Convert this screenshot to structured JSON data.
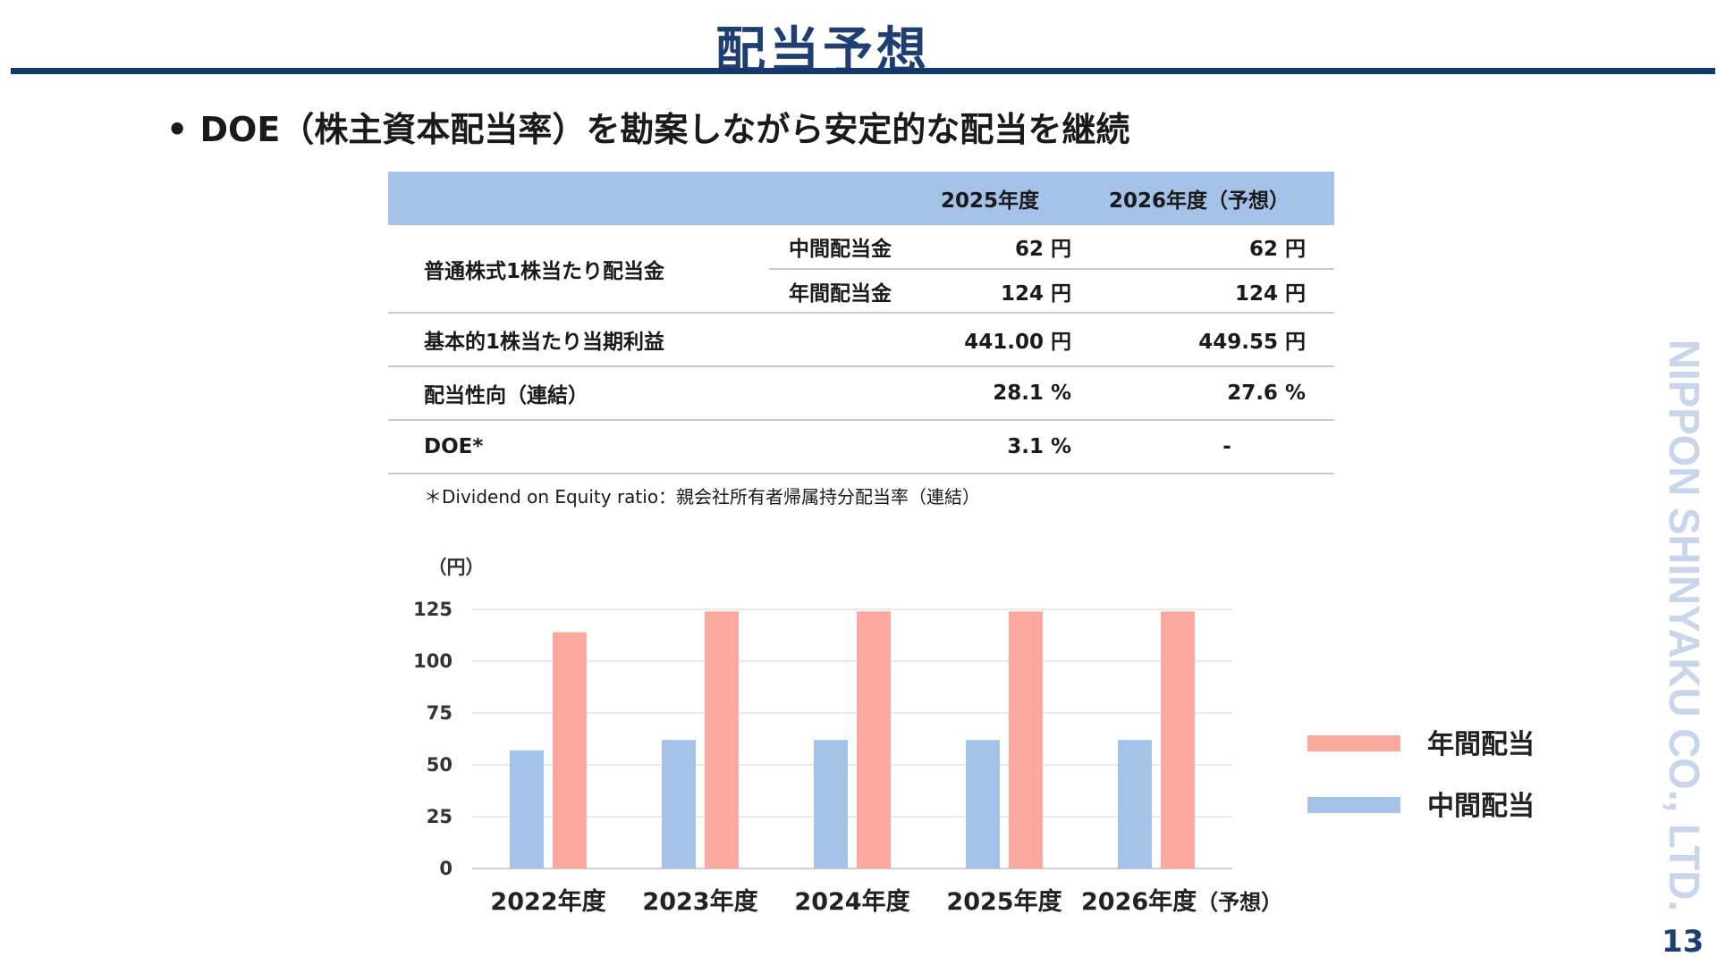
{
  "title": "配当予想",
  "bullet": "• DOE（株主資本配当率）を勘案しながら安定的な配当を継続",
  "table": {
    "headers": [
      "",
      "",
      "2025年度",
      "2026年度（予想）"
    ],
    "rows": [
      {
        "label": "普通株式1株当たり配当金",
        "sub": "中間配当金",
        "v2025": "62 円",
        "v2026": "62 円"
      },
      {
        "sub": "年間配当金",
        "v2025": "124 円",
        "v2026": "124 円"
      },
      {
        "label": "基本的1株当たり当期利益",
        "sub": "",
        "v2025": "441.00 円",
        "v2026": "449.55 円"
      },
      {
        "label": "配当性向（連結）",
        "sub": "",
        "v2025": "28.1 %",
        "v2026": "27.6 %"
      },
      {
        "label": "DOE*",
        "sub": "",
        "v2025": "3.1 %",
        "v2026": "-"
      }
    ]
  },
  "footnote": "＊Dividend on Equity ratio：親会社所有者帰属持分配当率（連結）",
  "chart_data": {
    "type": "bar",
    "ylabel": "（円）",
    "ylim": [
      0,
      125
    ],
    "yticks": [
      0,
      25,
      50,
      75,
      100,
      125
    ],
    "categories": [
      "2022年度",
      "2023年度",
      "2024年度",
      "2025年度",
      "2026年度"
    ],
    "category_suffix": [
      "",
      "",
      "",
      "",
      "（予想）"
    ],
    "series": [
      {
        "name": "中間配当",
        "color": "#a4c2e8",
        "values": [
          57,
          62,
          62,
          62,
          62
        ]
      },
      {
        "name": "年間配当",
        "color": "#fba99f",
        "values": [
          114,
          124,
          124,
          124,
          124
        ]
      }
    ],
    "legend": "right",
    "grid": true
  },
  "brand": "NIPPON SHINYAKU CO., LTD.",
  "page_number": "13",
  "colors": {
    "accent": "#1f3f73",
    "header_fill": "#a4c2e8",
    "brand_text": "#c7d6ea"
  }
}
